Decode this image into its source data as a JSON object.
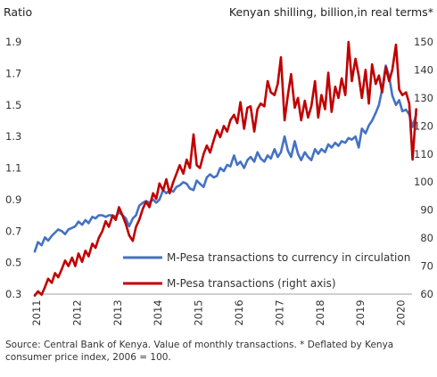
{
  "chart_data": {
    "type": "line",
    "left_axis_title": "Ratio",
    "right_axis_title": "Kenyan shilling, billion,in real terms*",
    "x_ticks": [
      "2011",
      "2012",
      "2013",
      "2014",
      "2015",
      "2016",
      "2017",
      "2018",
      "2019",
      "2020"
    ],
    "y_left": {
      "min": 0.3,
      "max": 1.9,
      "ticks": [
        "0.3",
        "0.5",
        "0.7",
        "0.9",
        "1.1",
        "1.3",
        "1.5",
        "1.7",
        "1.9"
      ]
    },
    "y_right": {
      "min": 60,
      "max": 150,
      "ticks": [
        "60",
        "70",
        "80",
        "90",
        "100",
        "110",
        "120",
        "130",
        "140",
        "150"
      ]
    },
    "grid": false,
    "legend_position": "lower-right",
    "series": [
      {
        "name": "M-Pesa transactions to currency in circulation",
        "axis": "left",
        "color": "#4472c4",
        "points": [
          [
            2011.0,
            0.57
          ],
          [
            2011.08,
            0.63
          ],
          [
            2011.17,
            0.61
          ],
          [
            2011.25,
            0.66
          ],
          [
            2011.33,
            0.64
          ],
          [
            2011.42,
            0.67
          ],
          [
            2011.5,
            0.69
          ],
          [
            2011.58,
            0.71
          ],
          [
            2011.67,
            0.7
          ],
          [
            2011.75,
            0.68
          ],
          [
            2011.83,
            0.71
          ],
          [
            2011.92,
            0.72
          ],
          [
            2012.0,
            0.73
          ],
          [
            2012.08,
            0.76
          ],
          [
            2012.17,
            0.74
          ],
          [
            2012.25,
            0.77
          ],
          [
            2012.33,
            0.75
          ],
          [
            2012.42,
            0.79
          ],
          [
            2012.5,
            0.78
          ],
          [
            2012.58,
            0.8
          ],
          [
            2012.67,
            0.8
          ],
          [
            2012.75,
            0.79
          ],
          [
            2012.83,
            0.8
          ],
          [
            2012.92,
            0.8
          ],
          [
            2013.0,
            0.79
          ],
          [
            2013.08,
            0.82
          ],
          [
            2013.17,
            0.8
          ],
          [
            2013.25,
            0.78
          ],
          [
            2013.33,
            0.73
          ],
          [
            2013.42,
            0.78
          ],
          [
            2013.5,
            0.8
          ],
          [
            2013.58,
            0.86
          ],
          [
            2013.67,
            0.88
          ],
          [
            2013.75,
            0.89
          ],
          [
            2013.83,
            0.88
          ],
          [
            2013.92,
            0.9
          ],
          [
            2014.0,
            0.88
          ],
          [
            2014.08,
            0.9
          ],
          [
            2014.17,
            0.96
          ],
          [
            2014.25,
            0.94
          ],
          [
            2014.33,
            0.96
          ],
          [
            2014.42,
            0.95
          ],
          [
            2014.5,
            0.98
          ],
          [
            2014.58,
            0.99
          ],
          [
            2014.67,
            1.01
          ],
          [
            2014.75,
            1.0
          ],
          [
            2014.83,
            0.97
          ],
          [
            2014.92,
            0.96
          ],
          [
            2015.0,
            1.02
          ],
          [
            2015.08,
            1.0
          ],
          [
            2015.17,
            0.98
          ],
          [
            2015.25,
            1.04
          ],
          [
            2015.33,
            1.06
          ],
          [
            2015.42,
            1.04
          ],
          [
            2015.5,
            1.05
          ],
          [
            2015.58,
            1.1
          ],
          [
            2015.67,
            1.08
          ],
          [
            2015.75,
            1.12
          ],
          [
            2015.83,
            1.11
          ],
          [
            2015.92,
            1.18
          ],
          [
            2016.0,
            1.12
          ],
          [
            2016.08,
            1.14
          ],
          [
            2016.17,
            1.1
          ],
          [
            2016.25,
            1.15
          ],
          [
            2016.33,
            1.17
          ],
          [
            2016.42,
            1.14
          ],
          [
            2016.5,
            1.2
          ],
          [
            2016.58,
            1.16
          ],
          [
            2016.67,
            1.14
          ],
          [
            2016.75,
            1.18
          ],
          [
            2016.83,
            1.16
          ],
          [
            2016.92,
            1.22
          ],
          [
            2017.0,
            1.17
          ],
          [
            2017.08,
            1.2
          ],
          [
            2017.17,
            1.3
          ],
          [
            2017.25,
            1.21
          ],
          [
            2017.33,
            1.17
          ],
          [
            2017.42,
            1.27
          ],
          [
            2017.5,
            1.19
          ],
          [
            2017.58,
            1.15
          ],
          [
            2017.67,
            1.2
          ],
          [
            2017.75,
            1.17
          ],
          [
            2017.83,
            1.15
          ],
          [
            2017.92,
            1.22
          ],
          [
            2018.0,
            1.19
          ],
          [
            2018.08,
            1.22
          ],
          [
            2018.17,
            1.2
          ],
          [
            2018.25,
            1.25
          ],
          [
            2018.33,
            1.23
          ],
          [
            2018.42,
            1.26
          ],
          [
            2018.5,
            1.24
          ],
          [
            2018.58,
            1.27
          ],
          [
            2018.67,
            1.26
          ],
          [
            2018.75,
            1.29
          ],
          [
            2018.83,
            1.28
          ],
          [
            2018.92,
            1.3
          ],
          [
            2019.0,
            1.23
          ],
          [
            2019.08,
            1.35
          ],
          [
            2019.17,
            1.32
          ],
          [
            2019.25,
            1.37
          ],
          [
            2019.33,
            1.4
          ],
          [
            2019.42,
            1.45
          ],
          [
            2019.5,
            1.5
          ],
          [
            2019.58,
            1.6
          ],
          [
            2019.67,
            1.75
          ],
          [
            2019.75,
            1.68
          ],
          [
            2019.83,
            1.56
          ],
          [
            2019.92,
            1.5
          ],
          [
            2020.0,
            1.53
          ],
          [
            2020.08,
            1.46
          ],
          [
            2020.17,
            1.47
          ],
          [
            2020.25,
            1.44
          ],
          [
            2020.33,
            1.36
          ],
          [
            2020.42,
            1.44
          ]
        ]
      },
      {
        "name": "M-Pesa transactions (right axis)",
        "axis": "right",
        "color": "#c00000",
        "points": [
          [
            2011.0,
            59.5
          ],
          [
            2011.08,
            61.0
          ],
          [
            2011.17,
            59.8
          ],
          [
            2011.25,
            62.5
          ],
          [
            2011.33,
            65.5
          ],
          [
            2011.42,
            64.0
          ],
          [
            2011.5,
            67.5
          ],
          [
            2011.58,
            66.0
          ],
          [
            2011.67,
            69.0
          ],
          [
            2011.75,
            72.0
          ],
          [
            2011.83,
            70.0
          ],
          [
            2011.92,
            73.0
          ],
          [
            2012.0,
            70.0
          ],
          [
            2012.08,
            74.5
          ],
          [
            2012.17,
            71.5
          ],
          [
            2012.25,
            75.5
          ],
          [
            2012.33,
            73.5
          ],
          [
            2012.42,
            78.0
          ],
          [
            2012.5,
            76.5
          ],
          [
            2012.58,
            80.0
          ],
          [
            2012.67,
            82.5
          ],
          [
            2012.75,
            86.0
          ],
          [
            2012.83,
            84.0
          ],
          [
            2012.92,
            88.0
          ],
          [
            2013.0,
            86.5
          ],
          [
            2013.08,
            91.0
          ],
          [
            2013.17,
            88.0
          ],
          [
            2013.25,
            85.0
          ],
          [
            2013.33,
            81.0
          ],
          [
            2013.42,
            79.0
          ],
          [
            2013.5,
            84.0
          ],
          [
            2013.58,
            86.5
          ],
          [
            2013.67,
            90.5
          ],
          [
            2013.75,
            93.0
          ],
          [
            2013.83,
            91.0
          ],
          [
            2013.92,
            96.0
          ],
          [
            2014.0,
            94.0
          ],
          [
            2014.08,
            99.5
          ],
          [
            2014.17,
            97.0
          ],
          [
            2014.25,
            101.0
          ],
          [
            2014.33,
            96.0
          ],
          [
            2014.42,
            100.0
          ],
          [
            2014.5,
            103.0
          ],
          [
            2014.58,
            106.0
          ],
          [
            2014.67,
            103.0
          ],
          [
            2014.75,
            108.0
          ],
          [
            2014.83,
            105.0
          ],
          [
            2014.92,
            117.0
          ],
          [
            2015.0,
            106.0
          ],
          [
            2015.08,
            105.0
          ],
          [
            2015.17,
            110.0
          ],
          [
            2015.25,
            113.0
          ],
          [
            2015.33,
            110.5
          ],
          [
            2015.42,
            115.0
          ],
          [
            2015.5,
            118.5
          ],
          [
            2015.58,
            116.0
          ],
          [
            2015.67,
            120.0
          ],
          [
            2015.75,
            118.0
          ],
          [
            2015.83,
            122.0
          ],
          [
            2015.92,
            124.0
          ],
          [
            2016.0,
            121.0
          ],
          [
            2016.08,
            128.5
          ],
          [
            2016.17,
            119.0
          ],
          [
            2016.25,
            126.5
          ],
          [
            2016.33,
            127.0
          ],
          [
            2016.42,
            118.0
          ],
          [
            2016.5,
            126.0
          ],
          [
            2016.58,
            128.0
          ],
          [
            2016.67,
            127.0
          ],
          [
            2016.75,
            136.0
          ],
          [
            2016.83,
            132.0
          ],
          [
            2016.92,
            131.0
          ],
          [
            2017.0,
            135.0
          ],
          [
            2017.08,
            144.5
          ],
          [
            2017.17,
            122.0
          ],
          [
            2017.25,
            131.0
          ],
          [
            2017.33,
            138.5
          ],
          [
            2017.42,
            126.5
          ],
          [
            2017.5,
            130.0
          ],
          [
            2017.58,
            122.0
          ],
          [
            2017.67,
            129.0
          ],
          [
            2017.75,
            123.0
          ],
          [
            2017.83,
            127.0
          ],
          [
            2017.92,
            136.0
          ],
          [
            2018.0,
            123.0
          ],
          [
            2018.08,
            131.0
          ],
          [
            2018.17,
            126.0
          ],
          [
            2018.25,
            139.0
          ],
          [
            2018.33,
            125.0
          ],
          [
            2018.42,
            134.0
          ],
          [
            2018.5,
            130.0
          ],
          [
            2018.58,
            137.0
          ],
          [
            2018.67,
            131.0
          ],
          [
            2018.75,
            150.0
          ],
          [
            2018.83,
            136.0
          ],
          [
            2018.92,
            144.0
          ],
          [
            2019.0,
            138.0
          ],
          [
            2019.08,
            130.0
          ],
          [
            2019.17,
            140.0
          ],
          [
            2019.25,
            128.0
          ],
          [
            2019.33,
            142.0
          ],
          [
            2019.42,
            135.0
          ],
          [
            2019.5,
            138.0
          ],
          [
            2019.58,
            132.0
          ],
          [
            2019.67,
            141.0
          ],
          [
            2019.75,
            136.0
          ],
          [
            2019.83,
            140.0
          ],
          [
            2019.92,
            149.0
          ],
          [
            2020.0,
            133.0
          ],
          [
            2020.08,
            131.0
          ],
          [
            2020.17,
            132.0
          ],
          [
            2020.25,
            128.0
          ],
          [
            2020.33,
            108.0
          ],
          [
            2020.42,
            126.0
          ]
        ]
      }
    ],
    "source": "Source: Central Bank of Kenya. Value of monthly transactions. * Deflated by Kenya consumer price index, 2006 = 100."
  }
}
